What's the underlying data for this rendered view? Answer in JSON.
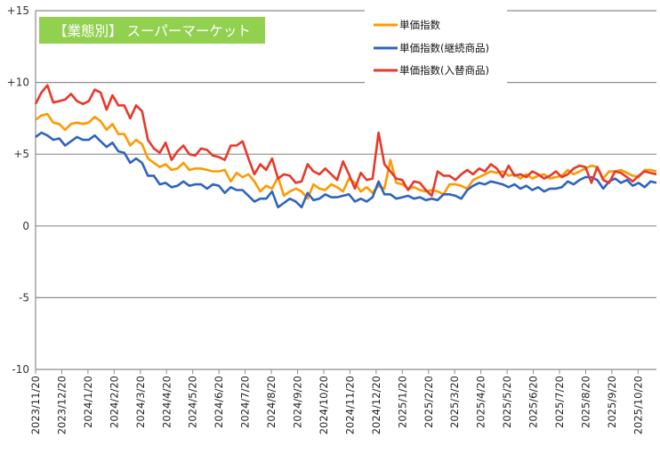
{
  "chart_data": {
    "type": "line",
    "title": "【業態別】 スーパーマーケット",
    "title_bg": "#92D050",
    "xlabel": "",
    "ylabel": "",
    "ylim": [
      -10,
      15
    ],
    "yticks": [
      15,
      10,
      5,
      0,
      -5,
      -10
    ],
    "ytick_labels": [
      "+15",
      "+10",
      "+5",
      "0",
      "-5",
      "-10"
    ],
    "grid": true,
    "legend_position": "top-right",
    "x_tick_labels": [
      "2023/11/20",
      "2023/12/20",
      "2024/1/20",
      "2024/2/20",
      "2024/3/20",
      "2024/4/20",
      "2024/5/20",
      "2024/6/20",
      "2024/7/20",
      "2024/8/20",
      "2024/9/20",
      "2024/10/20",
      "2024/11/20",
      "2024/12/20",
      "2025/1/20",
      "2025/2/20",
      "2025/3/20",
      "2025/4/20",
      "2025/5/20",
      "2025/6/20",
      "2025/7/20",
      "2025/8/20",
      "2025/9/20",
      "2025/10/20"
    ],
    "x_start": "2023/11/20",
    "x_step": "weekly",
    "series": [
      {
        "name": "単価指数",
        "color": "#FF9900",
        "values": [
          7.4,
          7.7,
          7.8,
          7.2,
          7.1,
          6.7,
          7.1,
          7.2,
          7.1,
          7.2,
          7.6,
          7.3,
          6.7,
          7.1,
          6.4,
          6.4,
          5.6,
          6.0,
          5.7,
          4.7,
          4.4,
          4.1,
          4.3,
          3.9,
          4.0,
          4.4,
          3.9,
          4.0,
          4.0,
          3.9,
          3.8,
          3.8,
          3.9,
          3.1,
          3.7,
          3.4,
          3.6,
          3.1,
          2.4,
          2.8,
          2.6,
          3.4,
          2.1,
          2.4,
          2.6,
          2.4,
          1.9,
          2.9,
          2.6,
          2.5,
          2.9,
          2.7,
          2.4,
          3.3,
          3.0,
          2.4,
          2.7,
          2.3,
          2.8,
          2.6,
          4.6,
          3.0,
          2.9,
          2.6,
          2.7,
          2.5,
          2.4,
          2.5,
          2.4,
          2.2,
          2.9,
          2.9,
          2.8,
          2.6,
          3.2,
          3.4,
          3.6,
          3.8,
          3.7,
          3.8,
          3.5,
          3.6,
          3.3,
          3.6,
          3.3,
          3.5,
          3.6,
          3.3,
          3.4,
          3.5,
          3.9,
          3.6,
          3.8,
          4.0,
          4.2,
          4.1,
          3.3,
          3.8,
          3.8,
          3.9,
          3.7,
          3.5,
          3.4,
          3.9,
          3.9,
          3.8
        ]
      },
      {
        "name": "単価指数(継続商品)",
        "color": "#2E64C0",
        "values": [
          6.2,
          6.5,
          6.3,
          6.0,
          6.1,
          5.6,
          5.9,
          6.2,
          6.0,
          6.0,
          6.3,
          5.9,
          5.5,
          5.8,
          5.2,
          5.1,
          4.4,
          4.7,
          4.4,
          3.5,
          3.5,
          2.9,
          3.0,
          2.7,
          2.8,
          3.1,
          2.8,
          2.9,
          2.9,
          2.6,
          2.9,
          2.8,
          2.3,
          2.7,
          2.5,
          2.5,
          2.1,
          1.7,
          1.9,
          1.9,
          2.4,
          1.3,
          1.6,
          1.9,
          1.7,
          1.3,
          2.3,
          1.8,
          1.9,
          2.2,
          2.0,
          2.0,
          2.1,
          2.2,
          1.7,
          1.9,
          1.7,
          2.0,
          3.1,
          2.2,
          2.2,
          1.9,
          2.0,
          2.1,
          1.9,
          2.0,
          1.8,
          1.9,
          1.8,
          2.2,
          2.2,
          2.1,
          1.9,
          2.5,
          2.8,
          3.0,
          2.9,
          3.1,
          3.0,
          2.9,
          2.7,
          2.9,
          2.6,
          2.8,
          2.5,
          2.7,
          2.4,
          2.6,
          2.6,
          2.7,
          3.1,
          2.9,
          3.2,
          3.4,
          3.4,
          3.2,
          2.6,
          3.1,
          3.3,
          3.0,
          3.2,
          2.8,
          3.0,
          2.7,
          3.1,
          3.0
        ]
      },
      {
        "name": "単価指数(入替商品)",
        "color": "#E8382A",
        "values": [
          8.5,
          9.3,
          9.8,
          8.6,
          8.7,
          8.8,
          9.2,
          8.7,
          8.5,
          8.7,
          9.5,
          9.3,
          8.1,
          9.1,
          8.4,
          8.4,
          7.5,
          8.4,
          8.0,
          6.0,
          5.4,
          5.1,
          5.8,
          4.6,
          5.2,
          5.6,
          5.0,
          4.9,
          5.4,
          5.3,
          4.9,
          4.8,
          4.6,
          5.6,
          5.6,
          5.9,
          4.7,
          3.6,
          4.3,
          3.9,
          4.7,
          3.3,
          3.6,
          3.5,
          3.0,
          3.1,
          4.3,
          3.8,
          3.6,
          4.0,
          3.6,
          3.2,
          4.5,
          3.6,
          2.6,
          3.7,
          3.2,
          3.3,
          6.5,
          4.3,
          3.8,
          3.3,
          3.2,
          2.5,
          3.1,
          3.0,
          2.5,
          2.1,
          3.8,
          3.5,
          3.5,
          3.2,
          3.6,
          3.9,
          3.6,
          4.0,
          3.8,
          4.3,
          4.0,
          3.4,
          4.2,
          3.5,
          3.6,
          3.4,
          3.8,
          3.6,
          3.3,
          3.5,
          3.8,
          3.4,
          3.6,
          4.0,
          4.2,
          4.1,
          3.0,
          4.1,
          3.2,
          3.0,
          3.8,
          3.7,
          3.4,
          3.1,
          3.5,
          3.8,
          3.7,
          3.6
        ]
      }
    ]
  }
}
